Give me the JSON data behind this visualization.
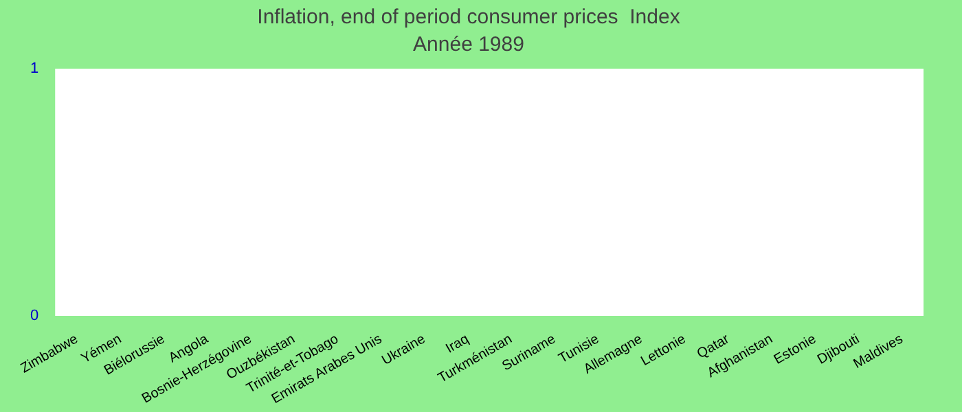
{
  "chart_data": {
    "type": "bar",
    "title": "Inflation, end of period consumer prices  Index",
    "subtitle": "Année 1989",
    "categories": [
      "Zimbabwe",
      "Yémen",
      "Biélorussie",
      "Angola",
      "Bosnie-Herzégovine",
      "Ouzbékistan",
      "Trinité-et-Tobago",
      "Emirats Arabes Unis",
      "Ukraine",
      "Iraq",
      "Turkménistan",
      "Suriname",
      "Tunisie",
      "Allemagne",
      "Lettonie",
      "Qatar",
      "Afghanistan",
      "Estonie",
      "Djibouti",
      "Maldives"
    ],
    "values": [
      null,
      null,
      null,
      null,
      null,
      null,
      null,
      null,
      null,
      null,
      null,
      null,
      null,
      null,
      null,
      null,
      null,
      null,
      null,
      null
    ],
    "ylim": [
      0,
      1
    ],
    "yticks": [
      0,
      1
    ],
    "grid": false,
    "legend": false
  }
}
